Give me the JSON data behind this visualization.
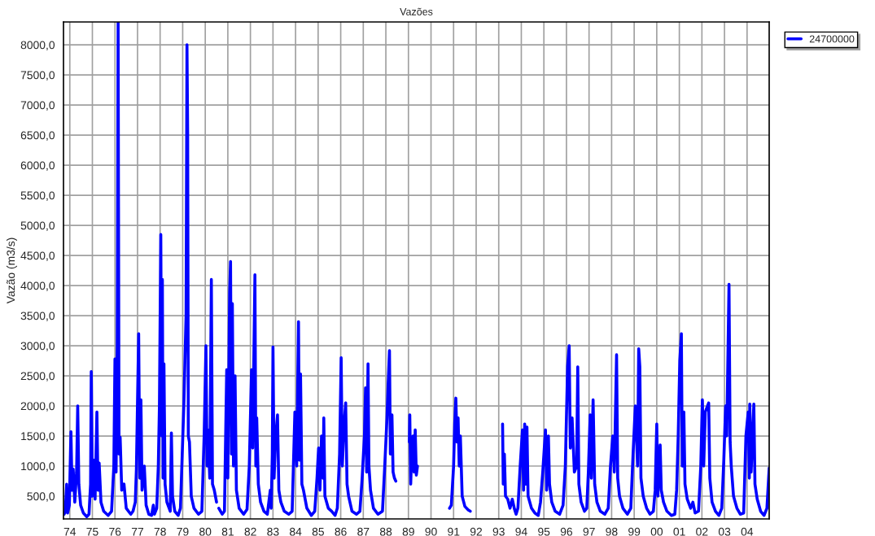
{
  "chart_data": {
    "type": "line",
    "title": "Vazões",
    "ylabel": "Vazão (m3/s)",
    "x": [
      1973.75,
      1973.8,
      1973.86,
      1973.9,
      1973.98,
      1974.05,
      1974.1,
      1974.15,
      1974.22,
      1974.3,
      1974.35,
      1974.4,
      1974.48,
      1974.6,
      1974.75,
      1974.85,
      1974.92,
      1974.95,
      1975.0,
      1975.05,
      1975.12,
      1975.2,
      1975.25,
      1975.3,
      1975.38,
      1975.5,
      1975.7,
      1975.85,
      1975.95,
      1976.0,
      1976.05,
      1976.1,
      1976.14,
      1976.18,
      1976.23,
      1976.3,
      1976.4,
      1976.5,
      1976.7,
      1976.8,
      1976.9,
      1976.95,
      1977.05,
      1977.1,
      1977.15,
      1977.2,
      1977.3,
      1977.38,
      1977.5,
      1977.62,
      1977.7,
      1977.75,
      1977.85,
      1977.92,
      1977.97,
      1978.03,
      1978.07,
      1978.1,
      1978.13,
      1978.17,
      1978.22,
      1978.3,
      1978.45,
      1978.5,
      1978.55,
      1978.65,
      1978.8,
      1978.9,
      1978.98,
      1979.05,
      1979.15,
      1979.19,
      1979.22,
      1979.25,
      1979.3,
      1979.38,
      1979.5,
      1979.7,
      1979.85,
      1979.95,
      1980.03,
      1980.08,
      1980.12,
      1980.2,
      1980.27,
      1980.32,
      1980.4,
      1980.5,
      1980.55,
      1980.6,
      1980.75,
      1980.85,
      1980.95,
      1981.0,
      1981.08,
      1981.12,
      1981.16,
      1981.2,
      1981.25,
      1981.32,
      1981.38,
      1981.5,
      1981.7,
      1981.85,
      1981.95,
      1982.05,
      1982.1,
      1982.2,
      1982.24,
      1982.28,
      1982.35,
      1982.45,
      1982.6,
      1982.75,
      1982.88,
      1982.92,
      1982.97,
      1983.0,
      1983.05,
      1983.12,
      1983.2,
      1983.26,
      1983.35,
      1983.5,
      1983.7,
      1983.85,
      1983.97,
      1984.05,
      1984.13,
      1984.17,
      1984.22,
      1984.28,
      1984.35,
      1984.5,
      1984.7,
      1984.85,
      1984.95,
      1985.02,
      1985.08,
      1985.15,
      1985.22,
      1985.25,
      1985.3,
      1985.45,
      1985.6,
      1985.75,
      1985.85,
      1985.95,
      1986.02,
      1986.07,
      1986.15,
      1986.22,
      1986.28,
      1986.35,
      1986.5,
      1986.7,
      1986.85,
      1986.95,
      1987.05,
      1987.1,
      1987.15,
      1987.21,
      1987.25,
      1987.32,
      1987.45,
      1987.65,
      1987.85,
      1987.95,
      1988.05,
      1988.1,
      1988.16,
      1988.2,
      1988.27,
      1988.32,
      1988.38,
      1988.44,
      1988.7,
      1989.04,
      1989.06,
      1989.1,
      1989.15,
      1989.2,
      1989.25,
      1989.3,
      1989.35,
      1989.4,
      1990.0,
      1990.82,
      1990.9,
      1991.0,
      1991.05,
      1991.1,
      1991.15,
      1991.2,
      1991.25,
      1991.3,
      1991.38,
      1991.5,
      1991.65,
      1991.74,
      1992.3,
      1993.17,
      1993.2,
      1993.25,
      1993.3,
      1993.4,
      1993.5,
      1993.6,
      1993.7,
      1993.77,
      1993.85,
      1993.95,
      1994.05,
      1994.1,
      1994.15,
      1994.2,
      1994.25,
      1994.3,
      1994.45,
      1994.6,
      1994.75,
      1994.85,
      1994.95,
      1995.07,
      1995.12,
      1995.2,
      1995.25,
      1995.35,
      1995.5,
      1995.7,
      1995.85,
      1995.95,
      1996.05,
      1996.12,
      1996.17,
      1996.25,
      1996.35,
      1996.45,
      1996.5,
      1996.55,
      1996.65,
      1996.8,
      1996.9,
      1996.97,
      1997.05,
      1997.1,
      1997.18,
      1997.25,
      1997.35,
      1997.5,
      1997.7,
      1997.85,
      1997.95,
      1998.05,
      1998.12,
      1998.22,
      1998.27,
      1998.35,
      1998.5,
      1998.7,
      1998.85,
      1998.95,
      1999.05,
      1999.15,
      1999.2,
      1999.25,
      1999.3,
      1999.4,
      1999.55,
      1999.7,
      1999.85,
      1999.93,
      2000.0,
      2000.05,
      2000.15,
      2000.2,
      2000.3,
      2000.45,
      2000.65,
      2000.8,
      2000.88,
      2000.95,
      2001.02,
      2001.09,
      2001.13,
      2001.2,
      2001.25,
      2001.35,
      2001.5,
      2001.6,
      2001.7,
      2001.85,
      2001.95,
      2002.02,
      2002.08,
      2002.15,
      2002.3,
      2002.35,
      2002.45,
      2002.6,
      2002.75,
      2002.88,
      2002.97,
      2003.05,
      2003.1,
      2003.2,
      2003.25,
      2003.3,
      2003.4,
      2003.55,
      2003.7,
      2003.85,
      2003.95,
      2004.05,
      2004.1,
      2004.12,
      2004.18,
      2004.3,
      2004.35,
      2004.45,
      2004.6,
      2004.75,
      2004.88,
      2004.98
    ],
    "series": [
      {
        "name": "24700000",
        "color": "#0000ff",
        "values": [
          200,
          250,
          700,
          220,
          350,
          1570,
          600,
          950,
          400,
          900,
          2000,
          700,
          350,
          220,
          160,
          200,
          700,
          2570,
          500,
          1100,
          450,
          1900,
          600,
          1050,
          400,
          250,
          180,
          250,
          1000,
          2780,
          900,
          3000,
          8380,
          1200,
          1480,
          600,
          700,
          300,
          200,
          250,
          400,
          950,
          3200,
          800,
          2100,
          600,
          1000,
          350,
          200,
          180,
          350,
          200,
          300,
          1000,
          2000,
          4850,
          1500,
          4100,
          800,
          2700,
          700,
          400,
          250,
          1550,
          500,
          250,
          180,
          300,
          1200,
          2000,
          3500,
          8000,
          6550,
          1500,
          1400,
          500,
          300,
          200,
          250,
          1500,
          3000,
          1000,
          1600,
          800,
          4100,
          700,
          600,
          400,
          null,
          300,
          200,
          250,
          2600,
          800,
          3900,
          4400,
          1200,
          3700,
          1000,
          2500,
          600,
          300,
          200,
          280,
          1000,
          2600,
          1300,
          4180,
          1000,
          1800,
          700,
          400,
          250,
          200,
          600,
          300,
          1200,
          2980,
          800,
          1500,
          1850,
          600,
          400,
          250,
          200,
          250,
          1900,
          1000,
          3400,
          1100,
          2530,
          700,
          600,
          300,
          180,
          250,
          800,
          1300,
          600,
          1500,
          800,
          1800,
          500,
          300,
          250,
          180,
          300,
          1200,
          2800,
          1000,
          1700,
          2050,
          700,
          500,
          250,
          200,
          250,
          800,
          1500,
          2300,
          900,
          2700,
          1000,
          600,
          300,
          200,
          250,
          1000,
          1800,
          2350,
          2920,
          1200,
          1850,
          900,
          800,
          750,
          null,
          1400,
          1850,
          700,
          1300,
          1500,
          900,
          1600,
          850,
          1000,
          null,
          300,
          350,
          1000,
          1700,
          2130,
          1400,
          1800,
          1000,
          1500,
          500,
          330,
          270,
          250,
          null,
          1700,
          700,
          1200,
          500,
          450,
          300,
          450,
          280,
          200,
          300,
          1000,
          1600,
          600,
          1700,
          700,
          1650,
          500,
          300,
          220,
          180,
          400,
          900,
          1600,
          600,
          1500,
          700,
          400,
          250,
          200,
          350,
          1000,
          2650,
          3000,
          1300,
          1800,
          900,
          1000,
          2650,
          700,
          400,
          250,
          300,
          900,
          1850,
          800,
          2100,
          700,
          400,
          250,
          200,
          300,
          1000,
          1500,
          900,
          2850,
          800,
          500,
          300,
          200,
          300,
          1200,
          2000,
          1000,
          2950,
          2650,
          800,
          500,
          300,
          200,
          250,
          600,
          1700,
          500,
          1350,
          600,
          400,
          250,
          180,
          200,
          600,
          1500,
          2750,
          3200,
          1000,
          1900,
          700,
          450,
          300,
          400,
          220,
          250,
          1000,
          2100,
          1000,
          1900,
          2050,
          800,
          400,
          250,
          180,
          300,
          1100,
          2000,
          1500,
          4020,
          1400,
          1000,
          500,
          300,
          200,
          220,
          1500,
          1900,
          800,
          2030,
          900,
          2030,
          700,
          450,
          250,
          180,
          300,
          970
        ]
      }
    ],
    "xlim": [
      1973.72,
      2004.98
    ],
    "xticks": [
      {
        "value": 1974,
        "label": "74"
      },
      {
        "value": 1975,
        "label": "75"
      },
      {
        "value": 1976,
        "label": "76"
      },
      {
        "value": 1977,
        "label": "77"
      },
      {
        "value": 1978,
        "label": "78"
      },
      {
        "value": 1979,
        "label": "79"
      },
      {
        "value": 1980,
        "label": "80"
      },
      {
        "value": 1981,
        "label": "81"
      },
      {
        "value": 1982,
        "label": "82"
      },
      {
        "value": 1983,
        "label": "83"
      },
      {
        "value": 1984,
        "label": "84"
      },
      {
        "value": 1985,
        "label": "85"
      },
      {
        "value": 1986,
        "label": "86"
      },
      {
        "value": 1987,
        "label": "87"
      },
      {
        "value": 1988,
        "label": "88"
      },
      {
        "value": 1989,
        "label": "89"
      },
      {
        "value": 1990,
        "label": "90"
      },
      {
        "value": 1991,
        "label": "91"
      },
      {
        "value": 1992,
        "label": "92"
      },
      {
        "value": 1993,
        "label": "93"
      },
      {
        "value": 1994,
        "label": "94"
      },
      {
        "value": 1995,
        "label": "95"
      },
      {
        "value": 1996,
        "label": "96"
      },
      {
        "value": 1997,
        "label": "97"
      },
      {
        "value": 1998,
        "label": "98"
      },
      {
        "value": 1999,
        "label": "99"
      },
      {
        "value": 2000,
        "label": "00"
      },
      {
        "value": 2001,
        "label": "01"
      },
      {
        "value": 2002,
        "label": "02"
      },
      {
        "value": 2003,
        "label": "03"
      },
      {
        "value": 2004,
        "label": "04"
      }
    ],
    "ylim": [
      122,
      8380
    ],
    "yticks": [
      {
        "value": 500,
        "label": "500,0"
      },
      {
        "value": 1000,
        "label": "1000,0"
      },
      {
        "value": 1500,
        "label": "1500,0"
      },
      {
        "value": 2000,
        "label": "2000,0"
      },
      {
        "value": 2500,
        "label": "2500,0"
      },
      {
        "value": 3000,
        "label": "3000,0"
      },
      {
        "value": 3500,
        "label": "3500,0"
      },
      {
        "value": 4000,
        "label": "4000,0"
      },
      {
        "value": 4500,
        "label": "4500,0"
      },
      {
        "value": 5000,
        "label": "5000,0"
      },
      {
        "value": 5500,
        "label": "5500,0"
      },
      {
        "value": 6000,
        "label": "6000,0"
      },
      {
        "value": 6500,
        "label": "6500,0"
      },
      {
        "value": 7000,
        "label": "7000,0"
      },
      {
        "value": 7500,
        "label": "7500,0"
      },
      {
        "value": 8000,
        "label": "8000,0"
      }
    ],
    "grid": true,
    "legend": "top right",
    "marker": "none",
    "line_style": "solid"
  }
}
